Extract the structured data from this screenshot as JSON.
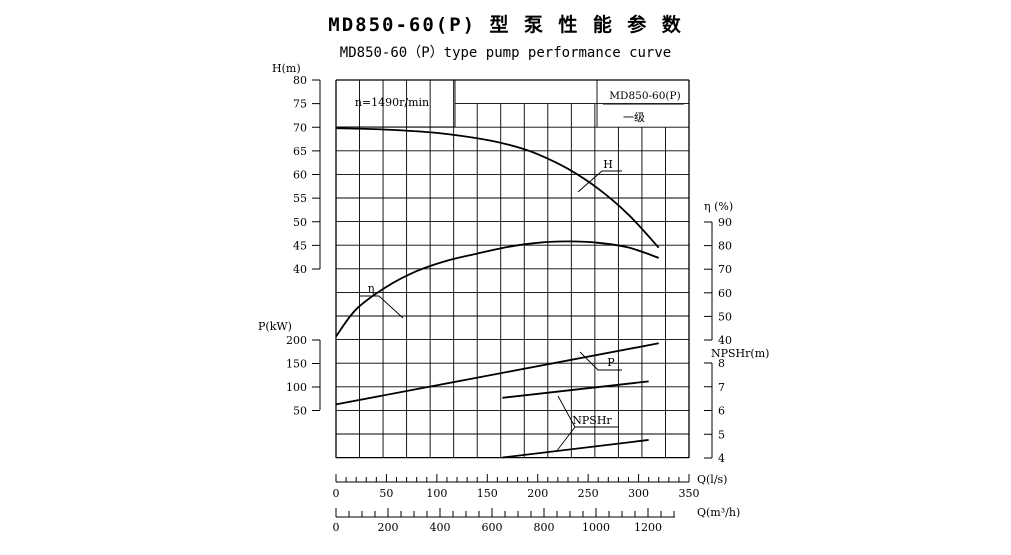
{
  "title": "MD850-60(P) 型 泵 性 能 参 数",
  "subtitle": "MD850-60（P）type pump performance curve",
  "chart_data": {
    "type": "line",
    "speed_label": "n=1490r/min",
    "model_label": "MD850-60(P)",
    "stage_label": "一级",
    "axes": {
      "H": {
        "label": "H(m)",
        "range": [
          40,
          80
        ],
        "ticks": [
          40,
          45,
          50,
          55,
          60,
          65,
          70,
          75,
          80
        ]
      },
      "P": {
        "label": "P(kW)",
        "ticks": [
          50,
          100,
          150,
          200
        ]
      },
      "eta": {
        "label": "η (%)",
        "range": [
          40,
          90
        ],
        "ticks": [
          40,
          50,
          60,
          70,
          80,
          90
        ]
      },
      "NPSHr": {
        "label": "NPSHr(m)",
        "range": [
          4,
          8
        ],
        "ticks": [
          4,
          5,
          6,
          7,
          8
        ]
      },
      "Q_ls": {
        "label": "Q(l/s)",
        "range": [
          0,
          350
        ],
        "ticks": [
          0,
          50,
          100,
          150,
          200,
          250,
          300,
          350
        ]
      },
      "Q_m3h": {
        "label": "Q(m³/h)",
        "ticks": [
          0,
          200,
          400,
          600,
          800,
          1000,
          1200
        ]
      }
    },
    "series": [
      {
        "name": "H",
        "axis": "H",
        "x": [
          0,
          50,
          100,
          150,
          180,
          200,
          230,
          260,
          290,
          320
        ],
        "y": [
          69.8,
          69.5,
          68.8,
          67.3,
          65.8,
          64.3,
          61.2,
          57,
          51.5,
          44.5
        ]
      },
      {
        "name": "η",
        "axis": "eta",
        "x": [
          0,
          20,
          50,
          80,
          110,
          140,
          170,
          200,
          230,
          260,
          290,
          320
        ],
        "y": [
          41.5,
          53,
          62.5,
          69.2,
          73.6,
          76.6,
          79.4,
          81.2,
          81.8,
          81.2,
          79.2,
          74.8
        ]
      },
      {
        "name": "P",
        "axis": "P",
        "x": [
          0,
          320
        ],
        "y": [
          63,
          193
        ]
      },
      {
        "name": "P",
        "axis": "P",
        "x": [
          165,
          310
        ],
        "y": [
          77,
          112
        ]
      },
      {
        "name": "NPSHr",
        "axis": "NPSHr",
        "x": [
          165,
          310
        ],
        "y": [
          4.02,
          4.76
        ]
      }
    ]
  }
}
